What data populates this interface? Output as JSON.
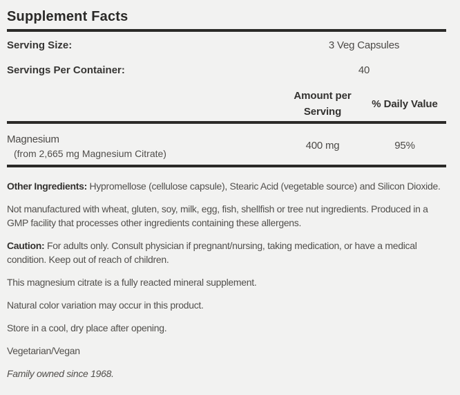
{
  "title": "Supplement Facts",
  "serving": {
    "size_label": "Serving Size:",
    "size_value": "3 Veg Capsules",
    "per_container_label": "Servings Per Container:",
    "per_container_value": "40"
  },
  "table": {
    "amount_header_line1": "Amount per",
    "amount_header_line2": "Serving",
    "dv_header": "% Daily Value",
    "rows": [
      {
        "name": "Magnesium",
        "detail": "(from 2,665 mg Magnesium Citrate)",
        "amount": "400 mg",
        "dv": "95%"
      }
    ]
  },
  "other_ingredients": {
    "label": "Other Ingredients:",
    "text": " Hypromellose (cellulose capsule), Stearic Acid (vegetable source) and Silicon Dioxide."
  },
  "paragraphs": {
    "allergens": "Not manufactured with wheat, gluten, soy, milk, egg, fish, shellfish or tree nut ingredients. Produced in a GMP facility that processes other ingredients containing these allergens.",
    "caution_label": "Caution:",
    "caution_text": " For adults only. Consult physician if pregnant/nursing, taking medication, or have a medical condition. Keep out of reach of children.",
    "reacted": "This magnesium citrate is a fully reacted mineral supplement.",
    "color_variation": "Natural color variation may occur in this product.",
    "storage": "Store in a cool, dry place after opening.",
    "vegetarian": "Vegetarian/Vegan",
    "family_owned": "Family owned since 1968."
  },
  "colors": {
    "background": "#f2f2f1",
    "rule": "#2b2a28",
    "title_text": "#2a2927",
    "body_text": "#514f4c"
  }
}
